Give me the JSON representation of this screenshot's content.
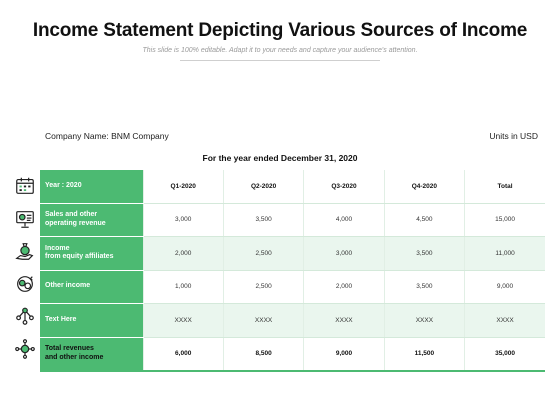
{
  "title": "Income Statement Depicting Various Sources of Income",
  "subtitle": "This slide is 100% editable. Adapt it to your needs and capture your audience's attention.",
  "company": "Company Name: BNM Company",
  "units": "Units in USD",
  "period": "For the year ended December 31, 2020",
  "accent_color": "#4cba72",
  "table": {
    "header": {
      "label": "Year : 2020",
      "columns": [
        "Q1-2020",
        "Q2-2020",
        "Q3-2020",
        "Q4-2020",
        "Total"
      ]
    },
    "rows": [
      {
        "label": "Sales and other\noperating revenue",
        "icon": "presentation-chart-icon",
        "values": [
          "3,000",
          "3,500",
          "4,000",
          "4,500",
          "15,000"
        ]
      },
      {
        "label": "Income\nfrom equity affiliates",
        "icon": "hand-money-bag-icon",
        "values": [
          "2,000",
          "2,500",
          "3,000",
          "3,500",
          "11,000"
        ]
      },
      {
        "label": "Other income",
        "icon": "money-cycle-icon",
        "values": [
          "1,000",
          "2,500",
          "2,000",
          "3,500",
          "9,000"
        ]
      },
      {
        "label": "Text Here",
        "icon": "network-people-icon",
        "values": [
          "XXXX",
          "XXXX",
          "XXXX",
          "XXXX",
          "XXXX"
        ]
      },
      {
        "label": "Total revenues\nand other income",
        "icon": "dollar-network-icon",
        "values": [
          "6,000",
          "8,500",
          "9,000",
          "11,500",
          "35,000"
        ]
      }
    ]
  }
}
